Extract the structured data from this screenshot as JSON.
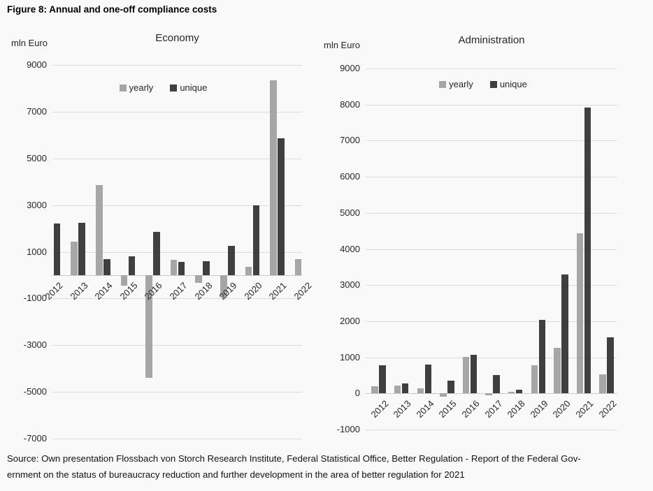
{
  "figure_title": "Figure 8: Annual and one-off compliance costs",
  "source": {
    "line1": "Source: Own presentation Flossbach von Storch Research Institute, Federal Statistical Office, Better Regulation - Report of the Federal Gov-",
    "line2": "ernment on the status of bureaucracy reduction and further development in the area of better regulation for 2021"
  },
  "colors": {
    "yearly": "#a6a6a6",
    "unique": "#3f3f3f",
    "gridline": "#dcdcdc",
    "axisline": "#c9c9c9",
    "background": "#f9f9f9"
  },
  "chart_data": [
    {
      "id": "economy",
      "type": "bar",
      "title": "Economy",
      "unit_label": "mln Euro",
      "legend_position": "top-center",
      "grid": true,
      "categories": [
        "2012",
        "2013",
        "2014",
        "2015",
        "2016",
        "2017",
        "2018",
        "2019",
        "2020",
        "2021",
        "2022"
      ],
      "series": [
        {
          "name": "yearly",
          "values": [
            0,
            1450,
            3850,
            -450,
            -4400,
            650,
            -330,
            -950,
            350,
            8350,
            700
          ]
        },
        {
          "name": "unique",
          "values": [
            2200,
            2250,
            700,
            800,
            1850,
            580,
            600,
            1270,
            3000,
            5850,
            0
          ]
        }
      ],
      "ylim": [
        -7000,
        9000
      ],
      "yticks": [
        9000,
        7000,
        5000,
        3000,
        1000,
        -1000,
        -3000,
        -5000,
        -7000
      ]
    },
    {
      "id": "administration",
      "type": "bar",
      "title": "Administration",
      "unit_label": "mln Euro",
      "legend_position": "top-center",
      "grid": true,
      "categories": [
        "2012",
        "2013",
        "2014",
        "2015",
        "2016",
        "2017",
        "2018",
        "2019",
        "2020",
        "2021",
        "2022"
      ],
      "series": [
        {
          "name": "yearly",
          "values": [
            200,
            220,
            150,
            -100,
            1010,
            -60,
            50,
            780,
            1270,
            4430,
            530
          ]
        },
        {
          "name": "unique",
          "values": [
            780,
            280,
            800,
            360,
            1080,
            500,
            110,
            2030,
            3290,
            7920,
            1550
          ]
        }
      ],
      "ylim": [
        -1000,
        9000
      ],
      "yticks": [
        9000,
        8000,
        7000,
        6000,
        5000,
        4000,
        3000,
        2000,
        1000,
        0,
        -1000
      ]
    }
  ]
}
